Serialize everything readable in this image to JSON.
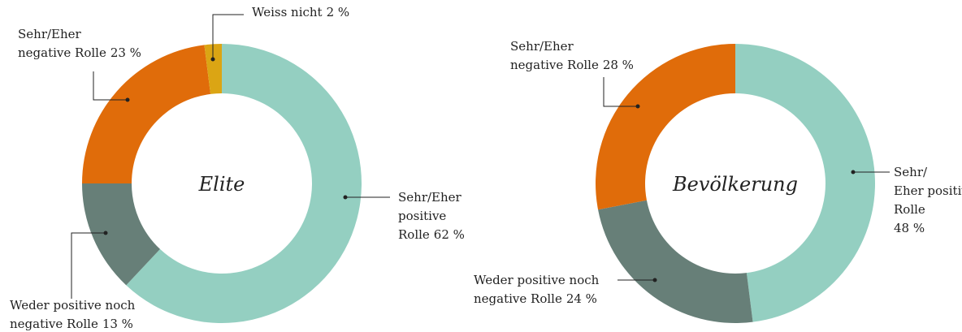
{
  "chart_data": [
    {
      "type": "donut",
      "title": "Elite",
      "categories": [
        "Sehr/Eher positive Rolle",
        "Weder positive noch negative Rolle",
        "Sehr/Eher negative Rolle",
        "Weiss nicht"
      ],
      "values": [
        62,
        13,
        23,
        2
      ],
      "value_labels": [
        "62 %",
        "13 %",
        "23 %",
        "2 %"
      ],
      "colors": [
        "#94cfc1",
        "#677f78",
        "#e06c0a",
        "#dba514"
      ]
    },
    {
      "type": "donut",
      "title": "Bevölkerung",
      "categories": [
        "Sehr/Eher positive Rolle",
        "Weder positive noch negative Rolle",
        "Sehr/Eher negative Rolle"
      ],
      "values": [
        48,
        24,
        28
      ],
      "value_labels": [
        "48 %",
        "24 %",
        "28 %"
      ],
      "colors": [
        "#94cfc1",
        "#677f78",
        "#e06c0a"
      ]
    }
  ]
}
